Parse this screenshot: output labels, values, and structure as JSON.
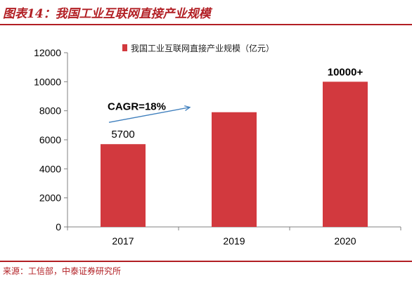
{
  "header": {
    "title": "图表14：我国工业互联网直接产业规模"
  },
  "footer": {
    "source": "来源：工信部，中泰证券研究所"
  },
  "chart_data": {
    "type": "bar",
    "categories": [
      "2017",
      "2019",
      "2020"
    ],
    "series": [
      {
        "name": "我国工业互联网直接产业规模（亿元）",
        "values": [
          5700,
          7900,
          10000
        ],
        "color": "#d2393e"
      }
    ],
    "ylim": [
      0,
      12000
    ],
    "yticks": [
      0,
      2000,
      4000,
      6000,
      8000,
      10000,
      12000
    ],
    "data_labels": [
      "5700",
      "",
      "10000+"
    ],
    "annotation": "CAGR=18%",
    "legend_position": "top",
    "grid": false
  }
}
